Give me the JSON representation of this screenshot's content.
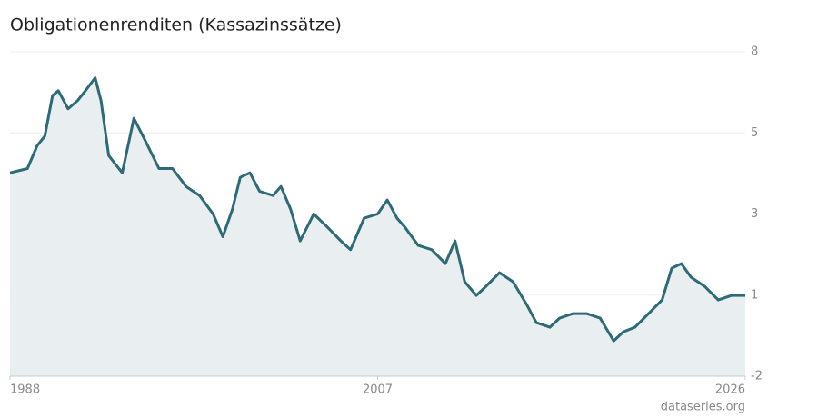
{
  "chart_data": {
    "type": "line",
    "title": "Obligationenrenditen (Kassazinssätze)",
    "source": "dataseries.org",
    "x": [
      1988.0,
      1988.9,
      1989.4,
      1989.8,
      1990.2,
      1990.5,
      1991.0,
      1991.5,
      1991.9,
      1992.4,
      1992.7,
      1993.1,
      1993.8,
      1994.4,
      1995.0,
      1995.7,
      1996.4,
      1997.1,
      1997.8,
      1998.5,
      1999.0,
      1999.5,
      1999.9,
      2000.4,
      2000.9,
      2001.6,
      2002.0,
      2002.5,
      2003.0,
      2003.7,
      2004.4,
      2005.1,
      2005.6,
      2006.3,
      2007.0,
      2007.5,
      2008.0,
      2008.4,
      2009.1,
      2009.8,
      2010.5,
      2011.0,
      2011.5,
      2012.1,
      2012.6,
      2013.3,
      2014.0,
      2014.7,
      2015.2,
      2015.9,
      2016.4,
      2017.1,
      2017.8,
      2018.5,
      2019.2,
      2019.7,
      2020.3,
      2021.0,
      2021.7,
      2022.2,
      2022.7,
      2023.2,
      2023.9,
      2024.6,
      2025.3,
      2026.0
    ],
    "series": [
      {
        "color": "#2e6b77",
        "values": [
          4.27,
          4.4,
          5.1,
          5.4,
          6.65,
          6.8,
          6.24,
          6.5,
          6.8,
          7.2,
          6.5,
          4.8,
          4.27,
          5.95,
          5.25,
          4.4,
          4.4,
          3.85,
          3.57,
          3.0,
          2.3,
          3.15,
          4.13,
          4.27,
          3.7,
          3.57,
          3.85,
          3.15,
          2.17,
          3.0,
          2.6,
          2.17,
          1.9,
          2.87,
          3.0,
          3.43,
          2.87,
          2.6,
          2.03,
          1.9,
          1.47,
          2.17,
          0.91,
          0.49,
          0.77,
          1.19,
          0.91,
          0.21,
          -0.35,
          -0.49,
          -0.21,
          -0.07,
          -0.07,
          -0.21,
          -0.91,
          -0.63,
          -0.49,
          -0.07,
          0.35,
          1.33,
          1.47,
          1.05,
          0.77,
          0.35,
          0.49,
          0.49
        ]
      }
    ],
    "area_color": "#e9eef1",
    "xlim": [
      1988,
      2026
    ],
    "xticks": [
      1988,
      2007,
      2026
    ],
    "ylim": [
      -2,
      8
    ],
    "yticks": [
      -2,
      {
        "value": 0.5,
        "label": "1"
      },
      3,
      {
        "value": 5.5,
        "label": "5"
      },
      8
    ],
    "grid": true
  }
}
